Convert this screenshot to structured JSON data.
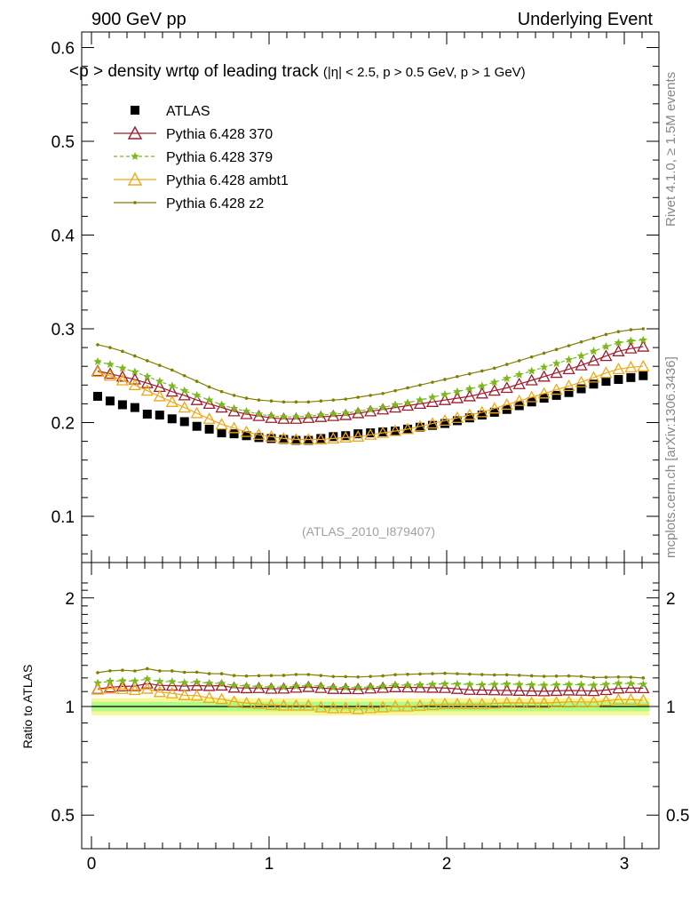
{
  "header": {
    "left_title": "900 GeV pp",
    "right_title": "Underlying Event"
  },
  "side": {
    "rivet": "Rivet 4.1.0, ≥ 1.5M events",
    "mcplots": "mcplots.cern.ch [arXiv:1306.3436]"
  },
  "chart_data": {
    "type": "scatter",
    "title_main": "<p  > density wrtφ of leading track",
    "title_cuts": "(|η| < 2.5, p  > 0.5 GeV, p   > 1 GeV)",
    "watermark": "(ATLAS_2010_I879407)",
    "xlabel": "",
    "ylabel_ratio": "Ratio to ATLAS",
    "xlim": [
      -0.1,
      3.2
    ],
    "ylim_main": [
      0.05,
      0.62
    ],
    "ylim_ratio": [
      0.4,
      2.3
    ],
    "x_ticks": [
      "0",
      "1",
      "2",
      "3"
    ],
    "y_ticks_main": [
      "0.1",
      "0.2",
      "0.3",
      "0.4",
      "0.5",
      "0.6"
    ],
    "y_ticks_ratio": [
      "0.5",
      "1",
      "2"
    ],
    "x": [
      0.0349,
      0.1047,
      0.1745,
      0.2443,
      0.3142,
      0.384,
      0.4538,
      0.5236,
      0.5934,
      0.6632,
      0.733,
      0.8029,
      0.8727,
      0.9425,
      1.0123,
      1.0821,
      1.1519,
      1.2217,
      1.2915,
      1.3614,
      1.4312,
      1.501,
      1.5708,
      1.6406,
      1.7104,
      1.7802,
      1.85,
      1.9199,
      1.9897,
      2.0595,
      2.1293,
      2.1991,
      2.2689,
      2.3387,
      2.4086,
      2.4784,
      2.5482,
      2.618,
      2.6878,
      2.7576,
      2.8274,
      2.8972,
      2.9671,
      3.0369,
      3.1067
    ],
    "series": [
      {
        "name": "ATLAS",
        "color": "#000000",
        "marker": "square",
        "line": false,
        "values": [
          0.228,
          0.223,
          0.219,
          0.216,
          0.209,
          0.208,
          0.204,
          0.201,
          0.196,
          0.193,
          0.189,
          0.188,
          0.186,
          0.184,
          0.183,
          0.182,
          0.181,
          0.181,
          0.183,
          0.185,
          0.186,
          0.188,
          0.189,
          0.19,
          0.191,
          0.193,
          0.195,
          0.197,
          0.199,
          0.202,
          0.205,
          0.208,
          0.211,
          0.214,
          0.218,
          0.222,
          0.226,
          0.229,
          0.232,
          0.236,
          0.241,
          0.244,
          0.246,
          0.248,
          0.25
        ]
      },
      {
        "name": "Pythia 6.428 370",
        "color": "#a01c2c",
        "marker": "triangle-open",
        "line": true,
        "values": [
          0.255,
          0.252,
          0.249,
          0.246,
          0.242,
          0.238,
          0.233,
          0.229,
          0.224,
          0.22,
          0.216,
          0.212,
          0.209,
          0.207,
          0.205,
          0.204,
          0.204,
          0.205,
          0.206,
          0.207,
          0.208,
          0.21,
          0.212,
          0.214,
          0.216,
          0.218,
          0.22,
          0.222,
          0.224,
          0.226,
          0.228,
          0.231,
          0.234,
          0.237,
          0.241,
          0.245,
          0.249,
          0.253,
          0.257,
          0.261,
          0.266,
          0.271,
          0.276,
          0.279,
          0.281
        ]
      },
      {
        "name": "Pythia 6.428 379",
        "color": "#7ab81e",
        "marker": "star",
        "line": true,
        "dashed": true,
        "values": [
          0.265,
          0.262,
          0.258,
          0.254,
          0.249,
          0.244,
          0.239,
          0.234,
          0.229,
          0.224,
          0.219,
          0.215,
          0.212,
          0.209,
          0.207,
          0.206,
          0.206,
          0.207,
          0.208,
          0.209,
          0.21,
          0.212,
          0.214,
          0.216,
          0.219,
          0.221,
          0.224,
          0.227,
          0.23,
          0.233,
          0.236,
          0.239,
          0.243,
          0.247,
          0.251,
          0.255,
          0.259,
          0.263,
          0.267,
          0.271,
          0.276,
          0.281,
          0.285,
          0.287,
          0.288
        ]
      },
      {
        "name": "Pythia 6.428 ambt1",
        "color": "#f0a818",
        "marker": "triangle-open",
        "line": true,
        "values": [
          0.254,
          0.25,
          0.245,
          0.24,
          0.234,
          0.228,
          0.222,
          0.216,
          0.21,
          0.204,
          0.198,
          0.194,
          0.19,
          0.187,
          0.185,
          0.183,
          0.182,
          0.182,
          0.182,
          0.183,
          0.184,
          0.185,
          0.187,
          0.189,
          0.191,
          0.193,
          0.196,
          0.199,
          0.202,
          0.205,
          0.208,
          0.211,
          0.215,
          0.219,
          0.223,
          0.227,
          0.231,
          0.235,
          0.239,
          0.243,
          0.248,
          0.253,
          0.257,
          0.259,
          0.26
        ]
      },
      {
        "name": "Pythia 6.428 z2",
        "color": "#808000",
        "marker": "dot",
        "line": true,
        "values": [
          0.283,
          0.28,
          0.276,
          0.271,
          0.266,
          0.261,
          0.256,
          0.25,
          0.244,
          0.238,
          0.233,
          0.229,
          0.226,
          0.224,
          0.223,
          0.222,
          0.222,
          0.222,
          0.223,
          0.224,
          0.225,
          0.227,
          0.229,
          0.231,
          0.234,
          0.237,
          0.24,
          0.243,
          0.246,
          0.249,
          0.252,
          0.255,
          0.258,
          0.262,
          0.266,
          0.27,
          0.274,
          0.278,
          0.282,
          0.286,
          0.29,
          0.294,
          0.297,
          0.299,
          0.3
        ]
      }
    ],
    "legend_position": "top-left",
    "ratio_band_color": "#f0f040",
    "ratio_band_inner_color": "#80ff80"
  }
}
